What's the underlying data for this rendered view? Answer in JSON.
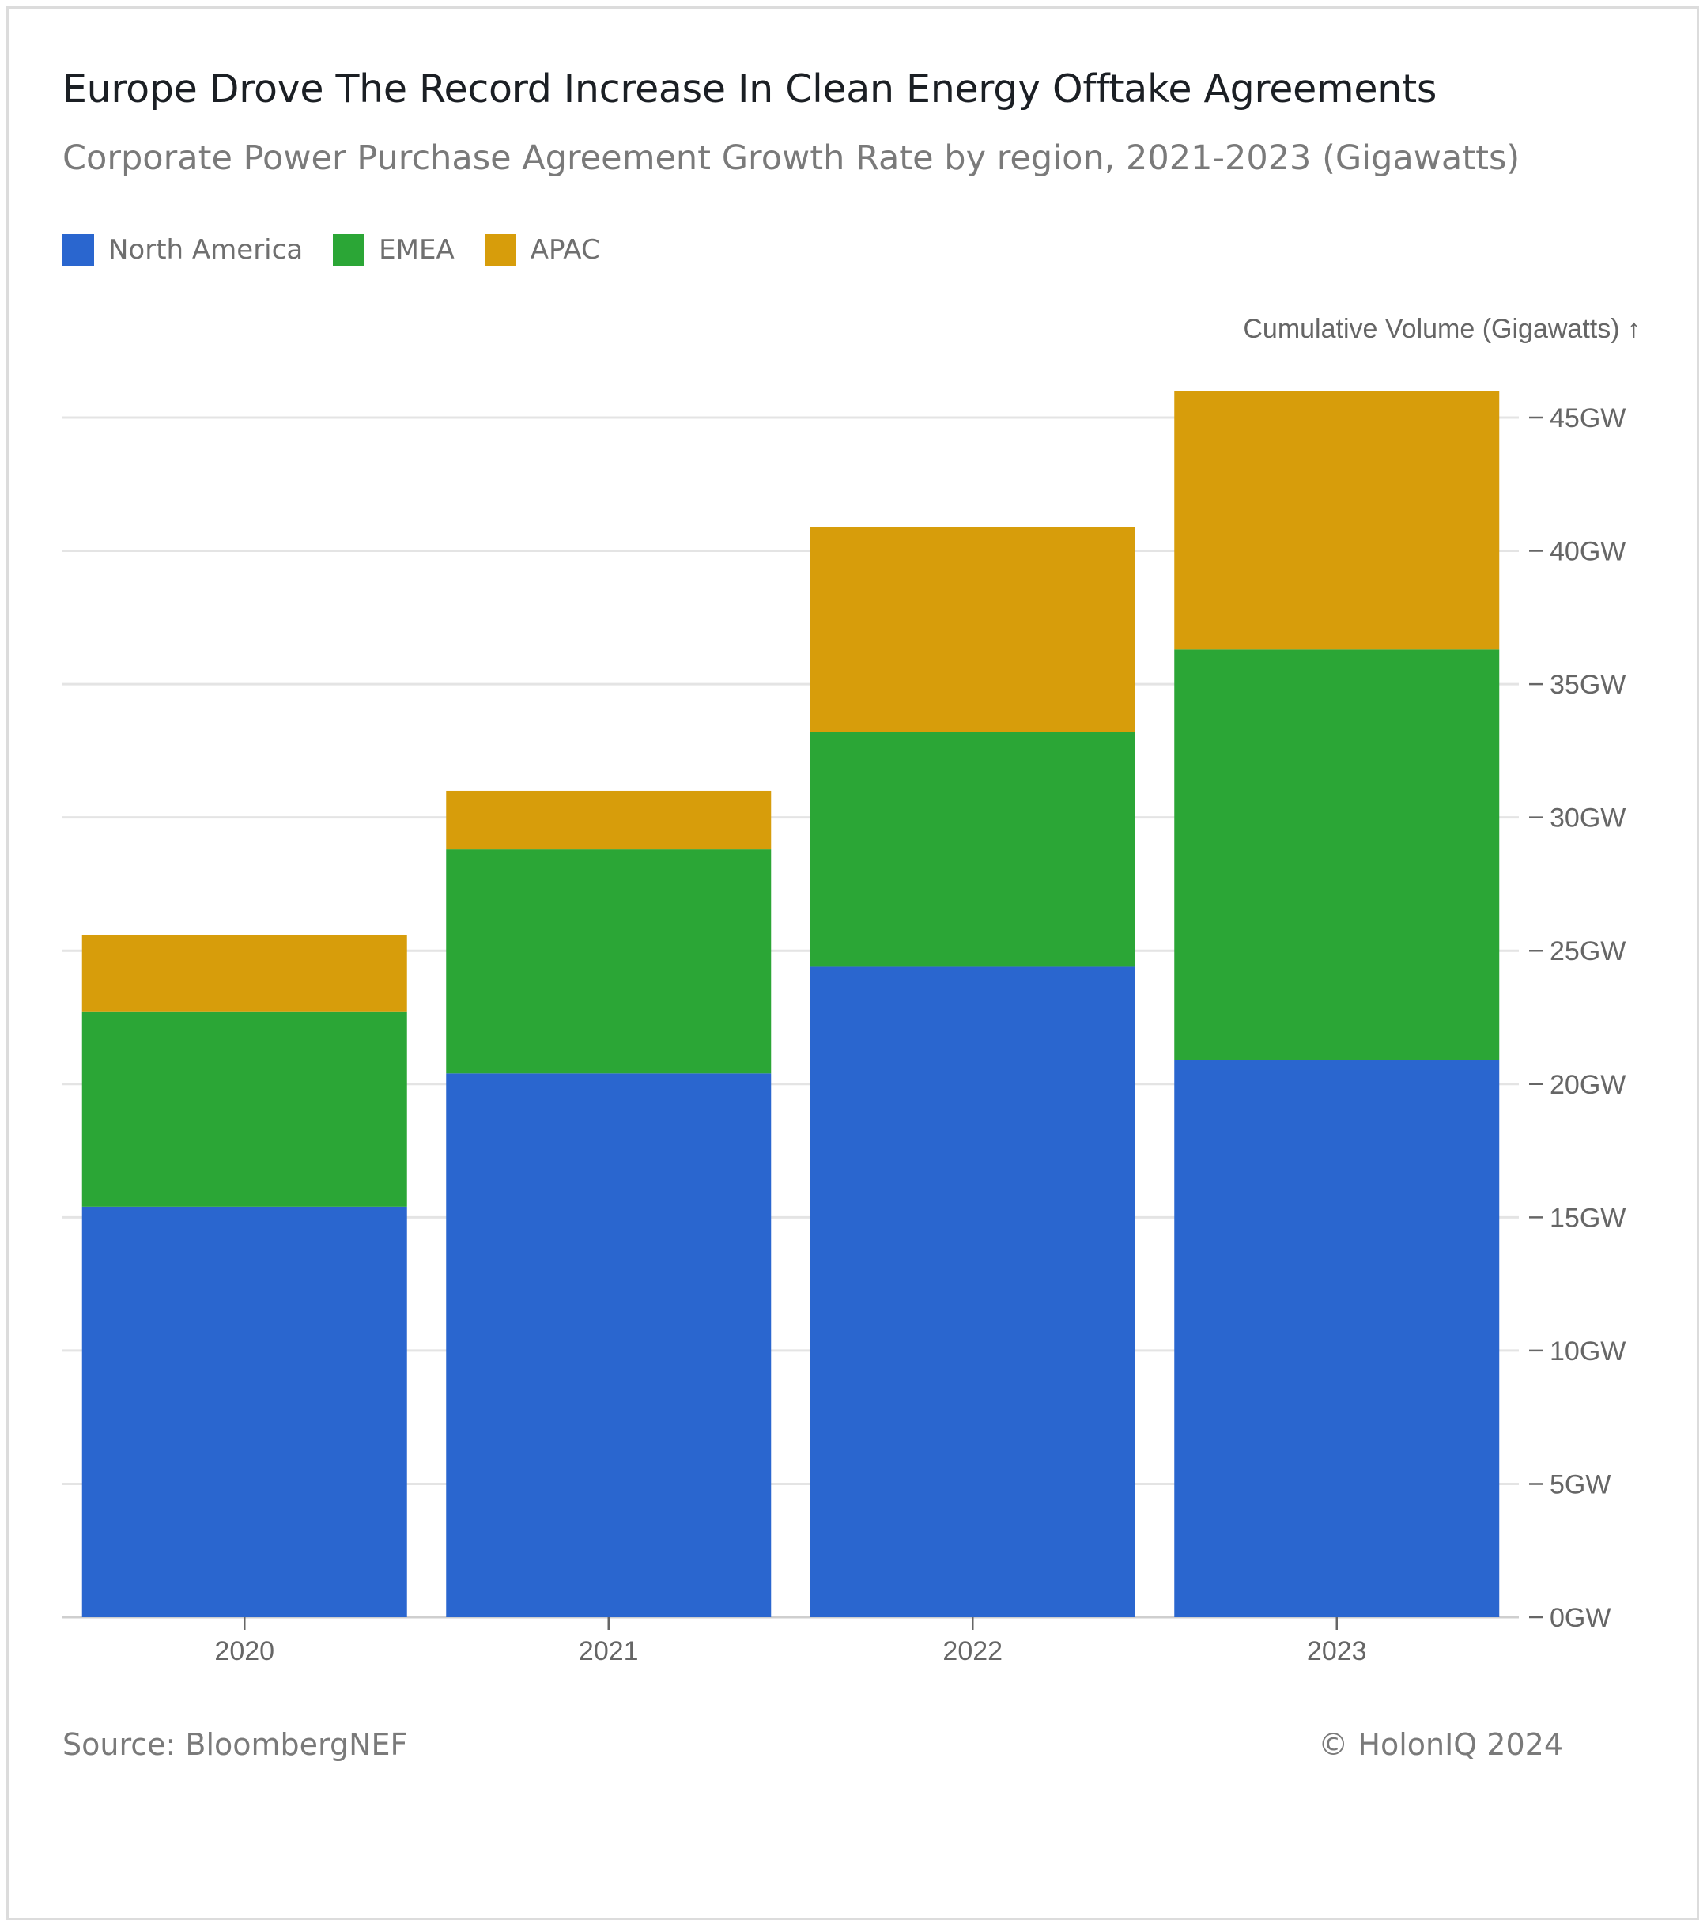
{
  "header": {
    "title": "Europe Drove The Record Increase In Clean Energy Offtake Agreements",
    "subtitle": "Corporate Power Purchase Agreement Growth Rate by region, 2021-2023 (Gigawatts)"
  },
  "legend": {
    "items": [
      {
        "label": "North America",
        "color": "#2a66cf"
      },
      {
        "label": "EMEA",
        "color": "#2ba636"
      },
      {
        "label": "APAC",
        "color": "#d79d0b"
      }
    ]
  },
  "footer": {
    "source": "Source: BloombergNEF",
    "copyright": "© HolonIQ 2024"
  },
  "chart_data": {
    "type": "bar",
    "stacked": true,
    "title": "Europe Drove The Record Increase In Clean Energy Offtake Agreements",
    "subtitle": "Corporate Power Purchase Agreement Growth Rate by region, 2021-2023 (Gigawatts)",
    "categories": [
      "2020",
      "2021",
      "2022",
      "2023"
    ],
    "series": [
      {
        "name": "North America",
        "color": "#2a66cf",
        "values": [
          15.4,
          20.4,
          24.4,
          20.9
        ]
      },
      {
        "name": "EMEA",
        "color": "#2ba636",
        "values": [
          7.3,
          8.4,
          8.8,
          15.4
        ]
      },
      {
        "name": "APAC",
        "color": "#d79d0b",
        "values": [
          2.9,
          2.2,
          7.7,
          9.7
        ]
      }
    ],
    "ylabel": "Cumulative Volume (Gigawatts) ↑",
    "xlabel": "",
    "ylim": [
      0,
      45
    ],
    "yticks": [
      0,
      5,
      10,
      15,
      20,
      25,
      30,
      35,
      40,
      45
    ],
    "ytick_suffix": "GW",
    "yaxis_side": "right",
    "grid": true,
    "legend_position": "top-left"
  }
}
